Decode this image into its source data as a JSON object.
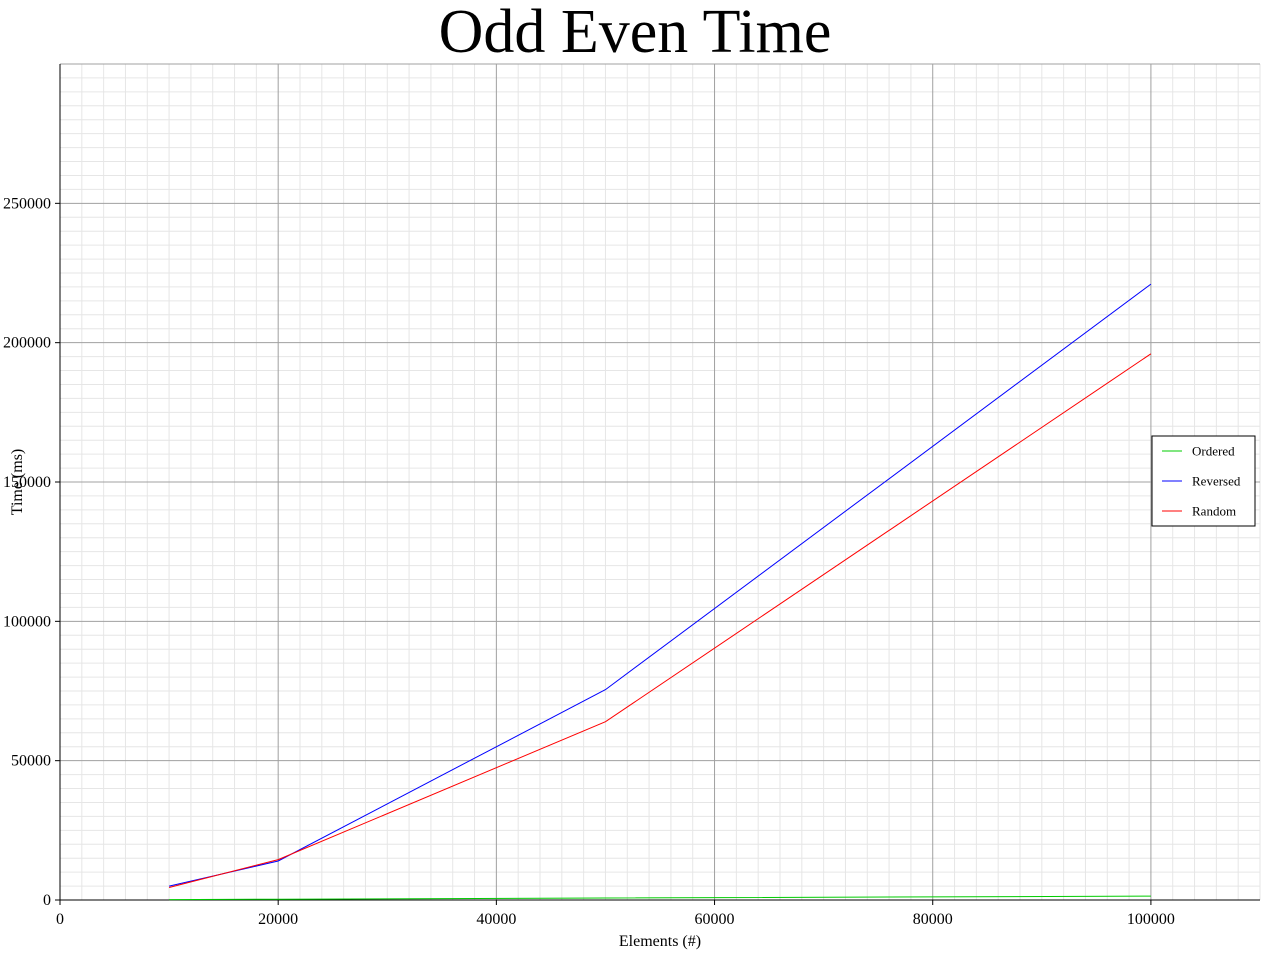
{
  "chart_data": {
    "type": "line",
    "title": "Odd Even Time",
    "xlabel": "Elements (#)",
    "ylabel": "Time (ms)",
    "xlim": [
      0,
      110000
    ],
    "ylim": [
      0,
      300000
    ],
    "x_ticks": [
      0,
      20000,
      40000,
      60000,
      80000,
      100000
    ],
    "y_ticks": [
      0,
      50000,
      100000,
      150000,
      200000,
      250000
    ],
    "x_tick_labels": [
      "0",
      "20000",
      "40000",
      "60000",
      "80000",
      "100000"
    ],
    "y_tick_labels": [
      "0",
      "50000",
      "100000",
      "150000",
      "200000",
      "250000"
    ],
    "grid": "on (major and minor)",
    "legend_position": "right",
    "x": [
      10000,
      20000,
      50000,
      100000
    ],
    "series": [
      {
        "name": "Ordered",
        "color": "#00cc00",
        "values": [
          150,
          300,
          700,
          1400
        ]
      },
      {
        "name": "Reversed",
        "color": "#0000ff",
        "values": [
          5000,
          14000,
          75500,
          221000
        ]
      },
      {
        "name": "Random",
        "color": "#ff0000",
        "values": [
          4500,
          14500,
          64000,
          196000
        ]
      }
    ]
  }
}
